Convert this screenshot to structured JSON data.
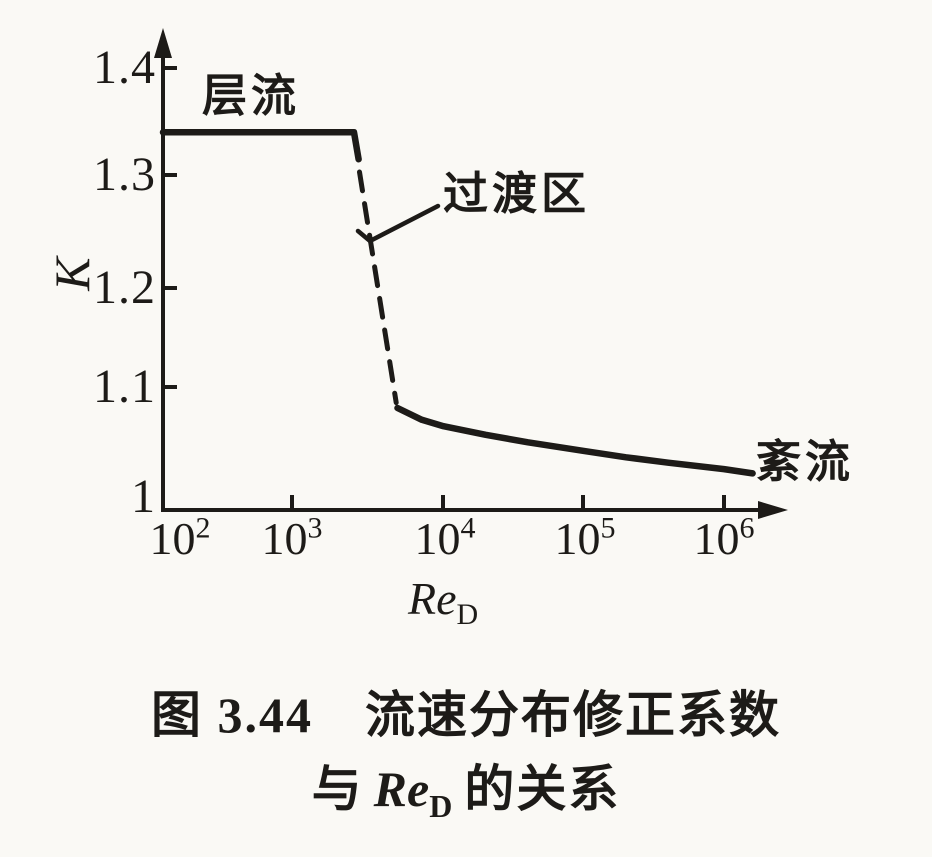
{
  "figure": {
    "background": "#faf9f5",
    "ink": "#1d1b18"
  },
  "chart_data": {
    "type": "line",
    "title": "图 3.44 流速分布修正系数与 ReD 的关系",
    "xlabel": "ReD",
    "ylabel": "K",
    "x_scale": "log",
    "xlim": [
      100,
      2500000
    ],
    "ylim": [
      1.0,
      1.45
    ],
    "x_tick_values": [
      100,
      1000,
      10000,
      100000,
      1000000
    ],
    "y_tick_values": [
      1.0,
      1.1,
      1.2,
      1.3,
      1.4
    ],
    "grid": false,
    "legend": "none",
    "series": [
      {
        "key": "laminar",
        "name": "层流 (laminar)",
        "style": "solid",
        "points": [
          [
            100,
            1.34
          ],
          [
            2300,
            1.34
          ],
          [
            2480,
            1.315
          ]
        ]
      },
      {
        "key": "transition",
        "name": "过渡区 (transition)",
        "style": "dashed",
        "points": [
          [
            2520,
            1.303
          ],
          [
            4600,
            1.088
          ]
        ]
      },
      {
        "key": "turbulent",
        "name": "紊流 (turbulent)",
        "style": "solid",
        "points": [
          [
            4700,
            1.083
          ],
          [
            7000,
            1.072
          ],
          [
            10000,
            1.066
          ],
          [
            20000,
            1.058
          ],
          [
            40000,
            1.051
          ],
          [
            100000,
            1.043
          ],
          [
            200000,
            1.037
          ],
          [
            400000,
            1.032
          ],
          [
            1000000,
            1.026
          ],
          [
            1600000,
            1.022
          ]
        ]
      }
    ],
    "annotations": [
      {
        "text": "层流",
        "at": "laminar plateau"
      },
      {
        "text": "过渡区",
        "at": "dashed transition drop"
      },
      {
        "text": "紊流",
        "at": "turbulent tail"
      }
    ]
  },
  "labels": {
    "y_axis": "K",
    "x_axis_base": "Re",
    "x_axis_sub": "D",
    "laminar": "层流",
    "transition": "过渡区",
    "turbulent": "紊流",
    "y_tick_labels": [
      "1.4",
      "1.3",
      "1.2",
      "1.1",
      "1"
    ],
    "x_tick_base": "10",
    "x_tick_exps": [
      "2",
      "3",
      "4",
      "5",
      "6"
    ]
  },
  "caption": {
    "line1": "图 3.44　流速分布修正系数",
    "line2_prefix": "与",
    "line2_re": "Re",
    "line2_sub": "D",
    "line2_suffix": "的关系"
  }
}
